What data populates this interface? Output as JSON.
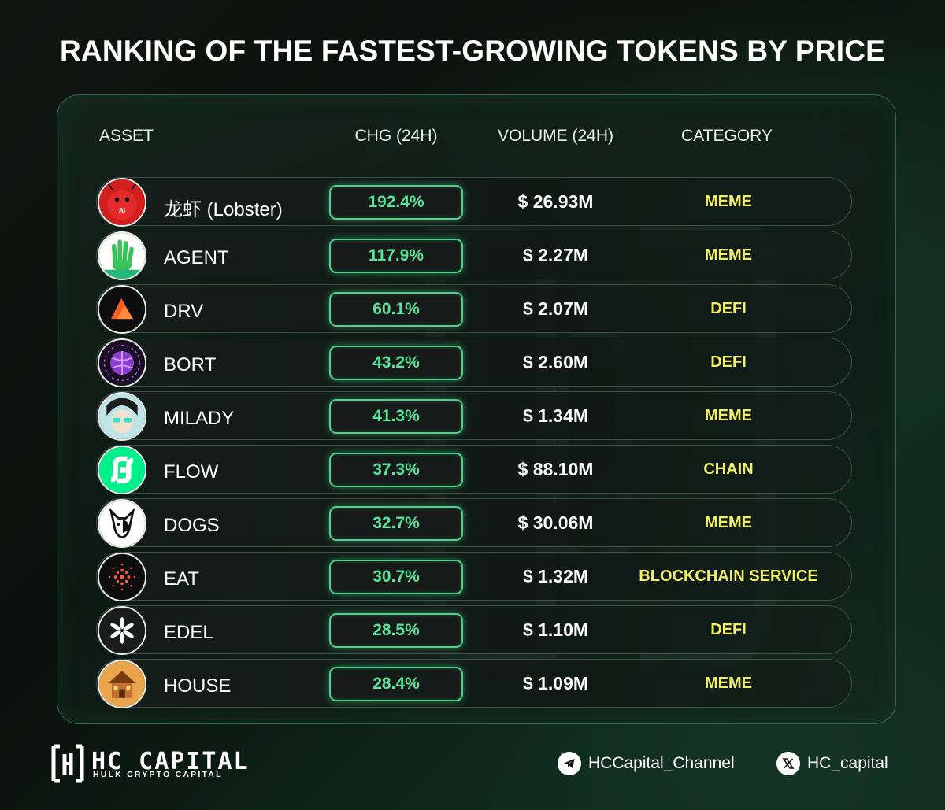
{
  "title": "RANKING OF THE FASTEST-GROWING TOKENS BY PRICE",
  "table": {
    "headers": {
      "asset": "ASSET",
      "change": "CHG (24H)",
      "volume": "VOLUME (24H)",
      "category": "CATEGORY"
    },
    "rows": [
      {
        "name": "龙虾 (Lobster)",
        "change": "192.4%",
        "volume": "$ 26.93M",
        "category": "MEME",
        "icon": "lobster-token-icon"
      },
      {
        "name": "AGENT",
        "change": "117.9%",
        "volume": "$ 2.27M",
        "category": "MEME",
        "icon": "agent-token-icon"
      },
      {
        "name": "DRV",
        "change": "60.1%",
        "volume": "$ 2.07M",
        "category": "DEFI",
        "icon": "drv-token-icon"
      },
      {
        "name": "BORT",
        "change": "43.2%",
        "volume": "$ 2.60M",
        "category": "DEFI",
        "icon": "bort-token-icon"
      },
      {
        "name": "MILADY",
        "change": "41.3%",
        "volume": "$ 1.34M",
        "category": "MEME",
        "icon": "milady-token-icon"
      },
      {
        "name": "FLOW",
        "change": "37.3%",
        "volume": "$ 88.10M",
        "category": "CHAIN",
        "icon": "flow-token-icon"
      },
      {
        "name": "DOGS",
        "change": "32.7%",
        "volume": "$ 30.06M",
        "category": "MEME",
        "icon": "dogs-token-icon"
      },
      {
        "name": "EAT",
        "change": "30.7%",
        "volume": "$ 1.32M",
        "category": "BLOCKCHAIN SERVICE",
        "icon": "eat-token-icon"
      },
      {
        "name": "EDEL",
        "change": "28.5%",
        "volume": "$ 1.10M",
        "category": "DEFI",
        "icon": "edel-token-icon"
      },
      {
        "name": "HOUSE",
        "change": "28.4%",
        "volume": "$ 1.09M",
        "category": "MEME",
        "icon": "house-token-icon"
      }
    ]
  },
  "footer": {
    "brand_name": "HC CAPITAL",
    "brand_tagline": "HULK CRYPTO CAPITAL",
    "telegram": "HCCapital_Channel",
    "x_handle": "HC_capital"
  },
  "colors": {
    "accent_green": "#58e39a",
    "category_yellow": "#f3ee6a",
    "background": "#0c120f"
  }
}
